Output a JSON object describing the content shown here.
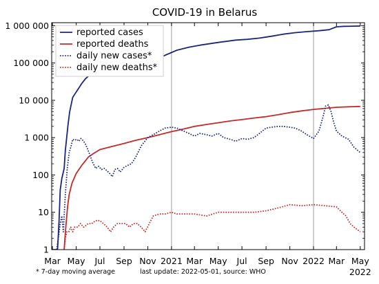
{
  "chart_data": {
    "type": "line",
    "title": "COVID-19 in Belarus",
    "xlabel": "",
    "ylabel": "",
    "yscale": "log",
    "ylim": [
      1,
      1200000
    ],
    "xlim": [
      "2020-02-28",
      "2022-05-12"
    ],
    "grid": "vertical gridlines at each year start",
    "legend_position": "top-left",
    "y_ticks": [
      {
        "value": 1,
        "label": "1"
      },
      {
        "value": 10,
        "label": "10"
      },
      {
        "value": 100,
        "label": "100"
      },
      {
        "value": 1000,
        "label": "1 000"
      },
      {
        "value": 10000,
        "label": "10 000"
      },
      {
        "value": 100000,
        "label": "100 000"
      },
      {
        "value": 1000000,
        "label": "1 000 000"
      }
    ],
    "x_ticks": [
      {
        "date": "2020-03-01",
        "label": "Mar"
      },
      {
        "date": "2020-05-01",
        "label": "May"
      },
      {
        "date": "2020-07-01",
        "label": "Jul"
      },
      {
        "date": "2020-09-01",
        "label": "Sep"
      },
      {
        "date": "2020-11-01",
        "label": "Nov"
      },
      {
        "date": "2021-01-01",
        "label": "2021"
      },
      {
        "date": "2021-03-01",
        "label": "Mar"
      },
      {
        "date": "2021-05-01",
        "label": "May"
      },
      {
        "date": "2021-07-01",
        "label": "Jul"
      },
      {
        "date": "2021-09-01",
        "label": "Sep"
      },
      {
        "date": "2021-11-01",
        "label": "Nov"
      },
      {
        "date": "2022-01-01",
        "label": "2022"
      },
      {
        "date": "2022-03-01",
        "label": "Mar"
      },
      {
        "date": "2022-05-01",
        "label": "May"
      }
    ],
    "year_lines": [
      "2021-01-01",
      "2022-01-01"
    ],
    "series": [
      {
        "name": "reported cases",
        "color": "#1a237e",
        "style": "solid",
        "points": [
          [
            "2020-03-01",
            1
          ],
          [
            "2020-03-14",
            1
          ],
          [
            "2020-03-18",
            6
          ],
          [
            "2020-03-21",
            40
          ],
          [
            "2020-03-25",
            80
          ],
          [
            "2020-03-31",
            150
          ],
          [
            "2020-04-03",
            450
          ],
          [
            "2020-04-07",
            1100
          ],
          [
            "2020-04-10",
            2200
          ],
          [
            "2020-04-14",
            4800
          ],
          [
            "2020-04-18",
            7500
          ],
          [
            "2020-04-22",
            12000
          ],
          [
            "2020-04-28",
            15000
          ],
          [
            "2020-05-06",
            20000
          ],
          [
            "2020-05-15",
            28000
          ],
          [
            "2020-05-25",
            38000
          ],
          [
            "2020-06-05",
            48000
          ],
          [
            "2020-06-20",
            57000
          ],
          [
            "2020-07-05",
            63000
          ],
          [
            "2020-07-25",
            67000
          ],
          [
            "2020-08-15",
            70000
          ],
          [
            "2020-09-15",
            75000
          ],
          [
            "2020-10-15",
            85000
          ],
          [
            "2020-11-15",
            110000
          ],
          [
            "2020-12-15",
            160000
          ],
          [
            "2021-01-15",
            220000
          ],
          [
            "2021-02-15",
            265000
          ],
          [
            "2021-03-15",
            300000
          ],
          [
            "2021-05-01",
            355000
          ],
          [
            "2021-06-15",
            410000
          ],
          [
            "2021-07-15",
            430000
          ],
          [
            "2021-08-15",
            465000
          ],
          [
            "2021-09-15",
            520000
          ],
          [
            "2021-10-15",
            590000
          ],
          [
            "2021-11-15",
            650000
          ],
          [
            "2021-12-15",
            690000
          ],
          [
            "2022-01-15",
            730000
          ],
          [
            "2022-02-10",
            780000
          ],
          [
            "2022-03-01",
            930000
          ],
          [
            "2022-03-20",
            960000
          ],
          [
            "2022-05-01",
            980000
          ]
        ]
      },
      {
        "name": "reported deaths",
        "color": "#c62828",
        "style": "solid",
        "points": [
          [
            "2020-03-31",
            1
          ],
          [
            "2020-04-02",
            2
          ],
          [
            "2020-04-05",
            5
          ],
          [
            "2020-04-09",
            15
          ],
          [
            "2020-04-13",
            30
          ],
          [
            "2020-04-20",
            60
          ],
          [
            "2020-05-01",
            110
          ],
          [
            "2020-05-15",
            180
          ],
          [
            "2020-06-01",
            300
          ],
          [
            "2020-06-15",
            380
          ],
          [
            "2020-07-01",
            480
          ],
          [
            "2020-08-01",
            580
          ],
          [
            "2020-09-01",
            700
          ],
          [
            "2020-10-01",
            850
          ],
          [
            "2020-11-01",
            1000
          ],
          [
            "2020-12-01",
            1200
          ],
          [
            "2021-01-01",
            1450
          ],
          [
            "2021-02-01",
            1700
          ],
          [
            "2021-03-01",
            2000
          ],
          [
            "2021-04-01",
            2250
          ],
          [
            "2021-05-01",
            2500
          ],
          [
            "2021-06-01",
            2800
          ],
          [
            "2021-07-01",
            3050
          ],
          [
            "2021-08-01",
            3350
          ],
          [
            "2021-09-01",
            3650
          ],
          [
            "2021-10-01",
            4100
          ],
          [
            "2021-11-01",
            4700
          ],
          [
            "2021-12-01",
            5200
          ],
          [
            "2022-01-01",
            5700
          ],
          [
            "2022-02-01",
            6100
          ],
          [
            "2022-03-01",
            6500
          ],
          [
            "2022-04-01",
            6700
          ],
          [
            "2022-05-01",
            6850
          ]
        ]
      },
      {
        "name": "daily new cases*",
        "color": "#1a237e",
        "style": "dotted",
        "points": [
          [
            "2020-03-12",
            1
          ],
          [
            "2020-03-16",
            2
          ],
          [
            "2020-03-21",
            5
          ],
          [
            "2020-03-25",
            8
          ],
          [
            "2020-03-29",
            3
          ],
          [
            "2020-04-03",
            30
          ],
          [
            "2020-04-08",
            150
          ],
          [
            "2020-04-13",
            400
          ],
          [
            "2020-04-18",
            600
          ],
          [
            "2020-04-22",
            900
          ],
          [
            "2020-04-27",
            850
          ],
          [
            "2020-05-03",
            900
          ],
          [
            "2020-05-08",
            800
          ],
          [
            "2020-05-13",
            950
          ],
          [
            "2020-05-18",
            850
          ],
          [
            "2020-05-24",
            700
          ],
          [
            "2020-05-30",
            500
          ],
          [
            "2020-06-05",
            350
          ],
          [
            "2020-06-12",
            220
          ],
          [
            "2020-06-20",
            150
          ],
          [
            "2020-06-28",
            170
          ],
          [
            "2020-07-05",
            140
          ],
          [
            "2020-07-12",
            150
          ],
          [
            "2020-07-19",
            130
          ],
          [
            "2020-07-26",
            110
          ],
          [
            "2020-08-02",
            90
          ],
          [
            "2020-08-08",
            140
          ],
          [
            "2020-08-15",
            150
          ],
          [
            "2020-08-22",
            120
          ],
          [
            "2020-09-01",
            160
          ],
          [
            "2020-09-10",
            180
          ],
          [
            "2020-09-20",
            200
          ],
          [
            "2020-10-01",
            300
          ],
          [
            "2020-10-15",
            600
          ],
          [
            "2020-11-01",
            1000
          ],
          [
            "2020-11-15",
            1200
          ],
          [
            "2020-12-01",
            1500
          ],
          [
            "2020-12-15",
            1800
          ],
          [
            "2021-01-01",
            1900
          ],
          [
            "2021-01-15",
            1800
          ],
          [
            "2021-02-01",
            1500
          ],
          [
            "2021-02-15",
            1300
          ],
          [
            "2021-03-01",
            1100
          ],
          [
            "2021-03-15",
            1300
          ],
          [
            "2021-04-01",
            1200
          ],
          [
            "2021-04-15",
            1100
          ],
          [
            "2021-05-01",
            1300
          ],
          [
            "2021-05-15",
            1000
          ],
          [
            "2021-06-01",
            900
          ],
          [
            "2021-06-15",
            800
          ],
          [
            "2021-07-01",
            950
          ],
          [
            "2021-07-15",
            900
          ],
          [
            "2021-08-01",
            1000
          ],
          [
            "2021-08-15",
            1300
          ],
          [
            "2021-09-01",
            1800
          ],
          [
            "2021-09-15",
            1900
          ],
          [
            "2021-10-01",
            2000
          ],
          [
            "2021-10-15",
            2000
          ],
          [
            "2021-11-01",
            1900
          ],
          [
            "2021-11-15",
            1800
          ],
          [
            "2021-12-01",
            1500
          ],
          [
            "2021-12-15",
            1200
          ],
          [
            "2022-01-01",
            950
          ],
          [
            "2022-01-15",
            1500
          ],
          [
            "2022-01-25",
            3500
          ],
          [
            "2022-02-01",
            7000
          ],
          [
            "2022-02-08",
            7500
          ],
          [
            "2022-02-15",
            5000
          ],
          [
            "2022-02-22",
            2500
          ],
          [
            "2022-03-01",
            1500
          ],
          [
            "2022-03-15",
            1100
          ],
          [
            "2022-04-01",
            900
          ],
          [
            "2022-04-15",
            550
          ],
          [
            "2022-05-01",
            400
          ]
        ]
      },
      {
        "name": "daily new deaths*",
        "color": "#c62828",
        "style": "dotted",
        "points": [
          [
            "2020-03-31",
            1
          ],
          [
            "2020-04-03",
            2
          ],
          [
            "2020-04-07",
            3
          ],
          [
            "2020-04-12",
            3
          ],
          [
            "2020-04-17",
            4
          ],
          [
            "2020-04-22",
            3
          ],
          [
            "2020-04-27",
            4
          ],
          [
            "2020-05-05",
            4
          ],
          [
            "2020-05-12",
            5
          ],
          [
            "2020-05-20",
            4
          ],
          [
            "2020-06-01",
            5
          ],
          [
            "2020-06-10",
            5
          ],
          [
            "2020-06-20",
            6
          ],
          [
            "2020-07-01",
            6
          ],
          [
            "2020-07-10",
            5
          ],
          [
            "2020-07-20",
            4
          ],
          [
            "2020-07-28",
            3
          ],
          [
            "2020-08-05",
            4
          ],
          [
            "2020-08-15",
            5
          ],
          [
            "2020-08-25",
            5
          ],
          [
            "2020-09-05",
            5
          ],
          [
            "2020-09-15",
            4
          ],
          [
            "2020-09-25",
            5
          ],
          [
            "2020-10-05",
            5
          ],
          [
            "2020-10-15",
            4
          ],
          [
            "2020-10-25",
            3
          ],
          [
            "2020-11-05",
            5
          ],
          [
            "2020-11-15",
            8
          ],
          [
            "2020-12-01",
            9
          ],
          [
            "2020-12-15",
            9
          ],
          [
            "2021-01-01",
            10
          ],
          [
            "2021-01-15",
            9
          ],
          [
            "2021-02-01",
            9
          ],
          [
            "2021-03-01",
            9
          ],
          [
            "2021-04-01",
            8
          ],
          [
            "2021-05-01",
            10
          ],
          [
            "2021-06-01",
            10
          ],
          [
            "2021-07-01",
            10
          ],
          [
            "2021-08-01",
            10
          ],
          [
            "2021-09-01",
            11
          ],
          [
            "2021-10-01",
            13
          ],
          [
            "2021-11-01",
            16
          ],
          [
            "2021-12-01",
            15
          ],
          [
            "2022-01-01",
            16
          ],
          [
            "2022-02-01",
            15
          ],
          [
            "2022-03-01",
            14
          ],
          [
            "2022-03-15",
            10
          ],
          [
            "2022-03-25",
            8
          ],
          [
            "2022-04-05",
            5
          ],
          [
            "2022-04-15",
            4
          ],
          [
            "2022-05-01",
            3
          ]
        ]
      }
    ]
  },
  "footer": {
    "note": "* 7-day moving average",
    "update": "last update: 2022-05-01, source: WHO"
  }
}
